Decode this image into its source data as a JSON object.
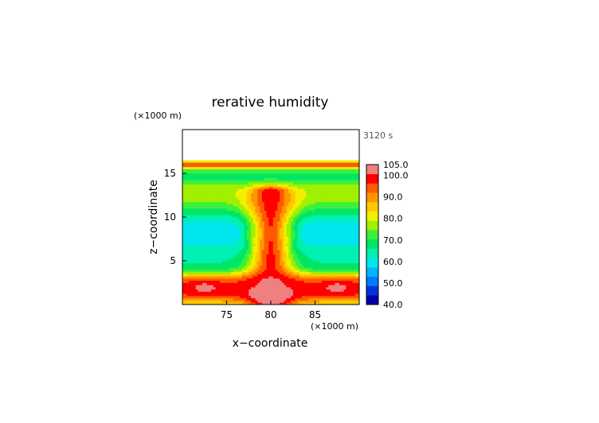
{
  "chart_data": {
    "type": "heatmap",
    "title": "rerative humidity",
    "xlabel": "x−coordinate",
    "ylabel": "z−coordinate",
    "x_unit": "(×1000 m)",
    "y_unit": "(×1000 m)",
    "time_label": "3120 s",
    "xlim": [
      70,
      90
    ],
    "ylim": [
      0,
      20
    ],
    "x_ticks": [
      {
        "value": 75,
        "label": "75"
      },
      {
        "value": 80,
        "label": "80"
      },
      {
        "value": 85,
        "label": "85"
      }
    ],
    "y_ticks": [
      {
        "value": 5,
        "label": "5"
      },
      {
        "value": 10,
        "label": "10"
      },
      {
        "value": 15,
        "label": "15"
      }
    ],
    "colorbar": {
      "min": 40,
      "max": 105,
      "step": 5,
      "labels": [
        "105.0",
        "100.0",
        "90.0",
        "80.0",
        "70.0",
        "60.0",
        "50.0",
        "40.0"
      ],
      "label_values": [
        105,
        100,
        90,
        80,
        70,
        60,
        50,
        40
      ],
      "colors": [
        "#0000aa",
        "#0033dd",
        "#0077ff",
        "#00b4ff",
        "#00e6ee",
        "#00f0b4",
        "#00e664",
        "#3cf03c",
        "#a0f000",
        "#f0f000",
        "#ffc800",
        "#ff9600",
        "#ff5a00",
        "#ff0000",
        "#f08080"
      ]
    },
    "field_description": "Relative humidity (%) at 3120 s in x–z section: saturated plume (>100%) centered at x≈80 from surface to z≈13; dry layer (50–60%) near z≈7–9; saturated layer near z≈16.",
    "nx": 80,
    "nz": 80
  }
}
